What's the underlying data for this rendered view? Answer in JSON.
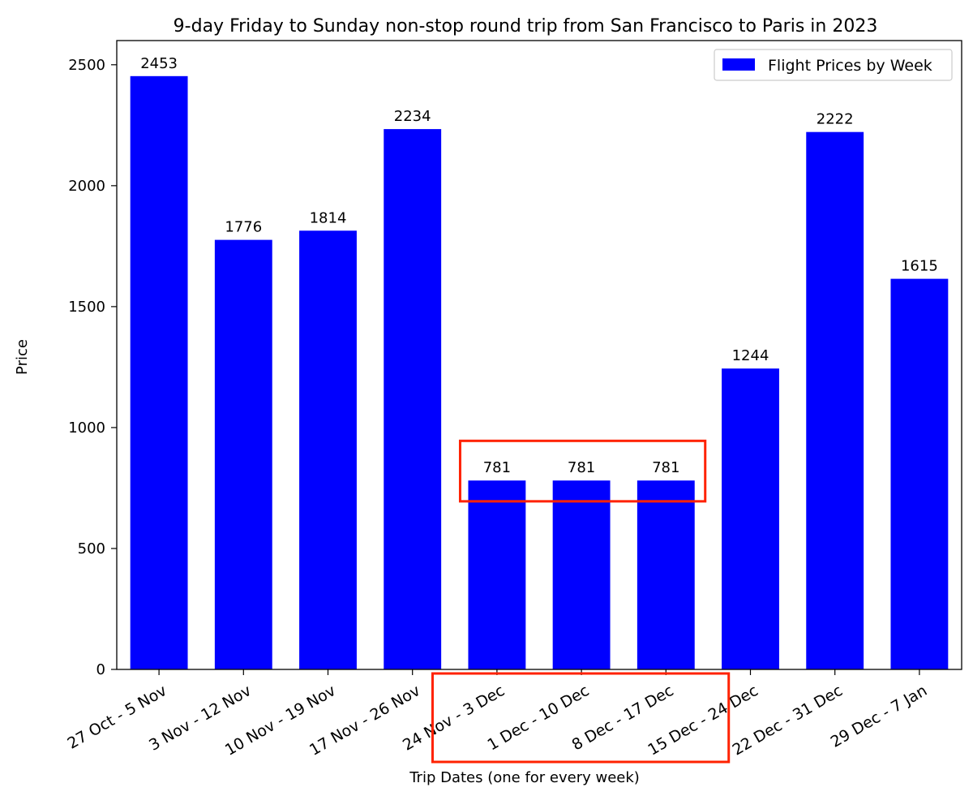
{
  "chart_data": {
    "type": "bar",
    "title": "9-day Friday to Sunday non-stop round trip from San Francisco to Paris in 2023",
    "xlabel": "Trip Dates (one for every week)",
    "ylabel": "Price",
    "ylim": [
      0,
      2600
    ],
    "yticks": [
      0,
      500,
      1000,
      1500,
      2000,
      2500
    ],
    "grid": false,
    "legend_position": "top-right",
    "categories": [
      "27 Oct - 5 Nov",
      "3 Nov - 12 Nov",
      "10 Nov - 19 Nov",
      "17 Nov - 26 Nov",
      "24 Nov - 3 Dec",
      "1 Dec - 10 Dec",
      "8 Dec - 17 Dec",
      "15 Dec - 24 Dec",
      "22 Dec - 31 Dec",
      "29 Dec - 7 Jan"
    ],
    "series": [
      {
        "name": "Flight Prices by Week",
        "color": "#0000ff",
        "values": [
          2453,
          1776,
          1814,
          2234,
          781,
          781,
          781,
          1244,
          2222,
          1615
        ]
      }
    ],
    "highlights": [
      {
        "color": "#ff2200",
        "category_range": [
          4,
          6
        ],
        "value_range": [
          695,
          945
        ],
        "target": "bars"
      },
      {
        "color": "#ff2200",
        "category_range": [
          4,
          6
        ],
        "target": "tick-labels"
      }
    ]
  }
}
